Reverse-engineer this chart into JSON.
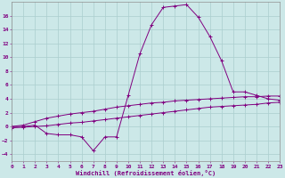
{
  "x": [
    0,
    1,
    2,
    3,
    4,
    5,
    6,
    7,
    8,
    9,
    10,
    11,
    12,
    13,
    14,
    15,
    16,
    17,
    18,
    19,
    20,
    21,
    22,
    23
  ],
  "line_spike": [
    0,
    0,
    0.2,
    -1.0,
    -1.2,
    -1.2,
    -1.5,
    -3.5,
    -1.5,
    -1.5,
    4.5,
    10.5,
    14.7,
    17.2,
    17.4,
    17.6,
    15.8,
    13.0,
    9.5,
    5.0,
    5.0,
    4.5,
    4.0,
    3.8
  ],
  "line_upper": [
    0,
    0.2,
    0.7,
    1.2,
    1.5,
    1.8,
    2.0,
    2.2,
    2.5,
    2.8,
    3.0,
    3.2,
    3.4,
    3.5,
    3.7,
    3.8,
    3.9,
    4.0,
    4.1,
    4.2,
    4.3,
    4.3,
    4.4,
    4.4
  ],
  "line_lower": [
    -0.2,
    -0.1,
    0.0,
    0.1,
    0.3,
    0.5,
    0.6,
    0.8,
    1.0,
    1.2,
    1.4,
    1.6,
    1.8,
    2.0,
    2.2,
    2.4,
    2.6,
    2.8,
    2.9,
    3.0,
    3.1,
    3.2,
    3.4,
    3.5
  ],
  "line_color": "#800080",
  "bg_color": "#cce8e8",
  "grid_color": "#aacece",
  "xlabel": "Windchill (Refroidissement éolien,°C)",
  "ylim": [
    -5,
    18
  ],
  "xlim": [
    0,
    23
  ],
  "yticks": [
    -4,
    -2,
    0,
    2,
    4,
    6,
    8,
    10,
    12,
    14,
    16
  ],
  "xticks": [
    0,
    1,
    2,
    3,
    4,
    5,
    6,
    7,
    8,
    9,
    10,
    11,
    12,
    13,
    14,
    15,
    16,
    17,
    18,
    19,
    20,
    21,
    22,
    23
  ],
  "marker": "+"
}
